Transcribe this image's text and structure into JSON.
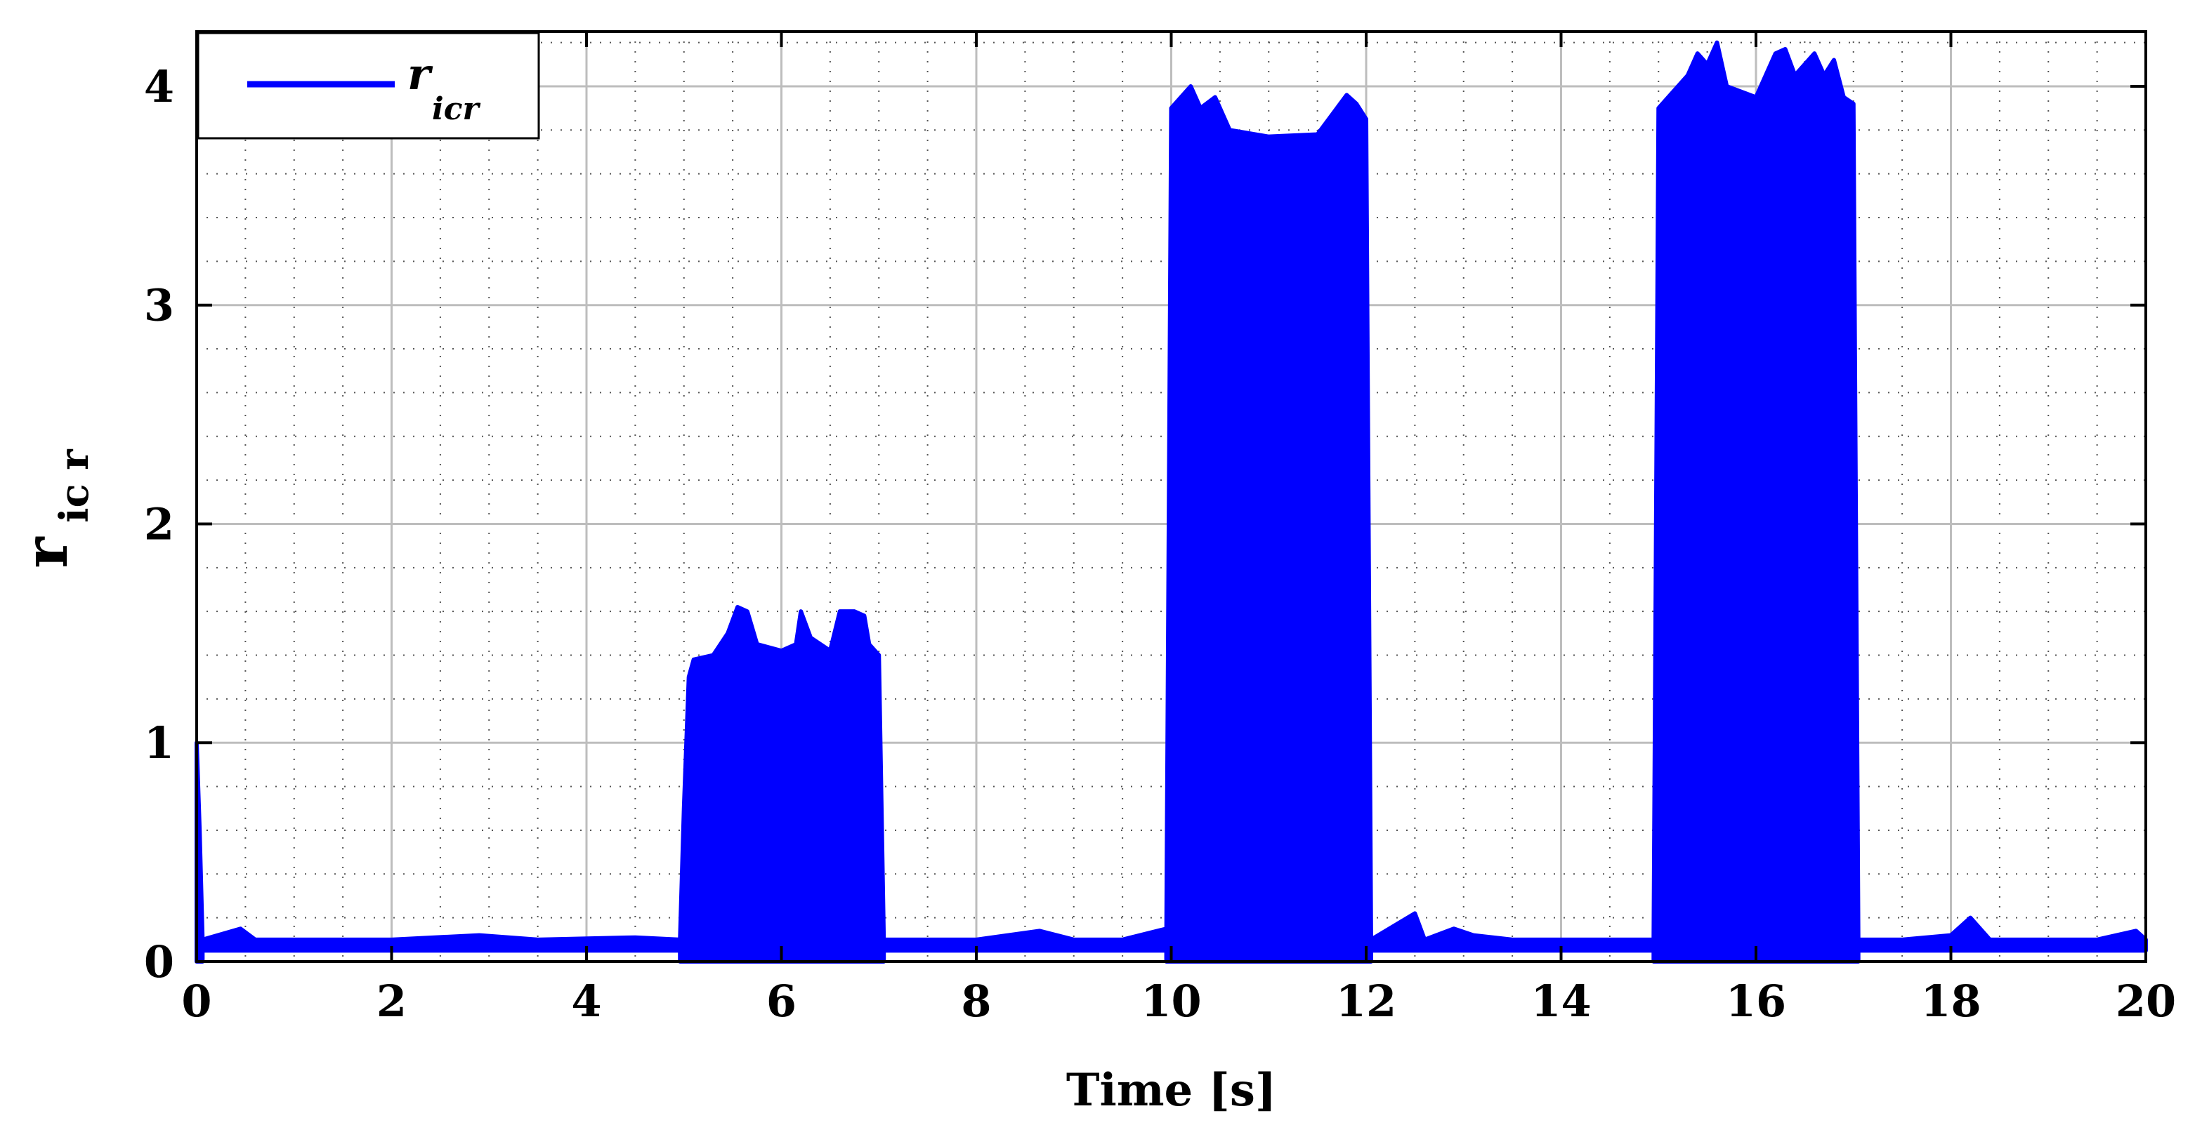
{
  "chart_data": {
    "type": "line",
    "xlabel": "Time [s]",
    "ylabel": {
      "main": "r",
      "sub": "ic r"
    },
    "xlim": [
      0,
      20
    ],
    "ylim": [
      0,
      4.25
    ],
    "xticks": [
      "0",
      "2",
      "4",
      "6",
      "8",
      "10",
      "12",
      "14",
      "16",
      "18",
      "20"
    ],
    "yticks": [
      "0",
      "1",
      "2",
      "3",
      "4"
    ],
    "grid": true,
    "minor_grid": true,
    "legend_position": "top-left",
    "series": [
      {
        "name": "r_icr",
        "name_main": "r",
        "name_sub": "icr",
        "color": "#0000ff",
        "segments": [
          {
            "x": [
              0.0,
              0.05
            ],
            "low": 0.0,
            "high": 1.0,
            "top_profile": [
              [
                0.0,
                1.0
              ],
              [
                0.03,
                0.6
              ],
              [
                0.06,
                0.1
              ]
            ]
          },
          {
            "x": [
              0.06,
              4.96
            ],
            "low": 0.05,
            "high": 0.1,
            "top_profile": [
              [
                0.06,
                0.1
              ],
              [
                0.45,
                0.15
              ],
              [
                0.6,
                0.1
              ],
              [
                1.0,
                0.1
              ],
              [
                2.0,
                0.1
              ],
              [
                2.9,
                0.12
              ],
              [
                3.5,
                0.1
              ],
              [
                4.5,
                0.11
              ],
              [
                4.96,
                0.1
              ]
            ]
          },
          {
            "x": [
              4.96,
              7.05
            ],
            "low": 0.0,
            "high": 1.45,
            "top_profile": [
              [
                4.96,
                0.1
              ],
              [
                5.0,
                0.7
              ],
              [
                5.05,
                1.3
              ],
              [
                5.1,
                1.38
              ],
              [
                5.3,
                1.4
              ],
              [
                5.45,
                1.5
              ],
              [
                5.55,
                1.62
              ],
              [
                5.65,
                1.6
              ],
              [
                5.75,
                1.45
              ],
              [
                6.0,
                1.42
              ],
              [
                6.15,
                1.45
              ],
              [
                6.2,
                1.6
              ],
              [
                6.3,
                1.48
              ],
              [
                6.5,
                1.42
              ],
              [
                6.6,
                1.6
              ],
              [
                6.75,
                1.6
              ],
              [
                6.85,
                1.58
              ],
              [
                6.9,
                1.45
              ],
              [
                7.0,
                1.4
              ],
              [
                7.05,
                0.1
              ]
            ]
          },
          {
            "x": [
              7.05,
              9.95
            ],
            "low": 0.05,
            "high": 0.1,
            "top_profile": [
              [
                7.05,
                0.1
              ],
              [
                7.3,
                0.1
              ],
              [
                8.0,
                0.1
              ],
              [
                8.65,
                0.14
              ],
              [
                9.0,
                0.1
              ],
              [
                9.5,
                0.1
              ],
              [
                9.95,
                0.15
              ]
            ]
          },
          {
            "x": [
              9.95,
              12.05
            ],
            "low": 0.0,
            "high": 3.8,
            "top_profile": [
              [
                9.95,
                0.1
              ],
              [
                10.0,
                3.9
              ],
              [
                10.1,
                3.95
              ],
              [
                10.2,
                4.0
              ],
              [
                10.3,
                3.9
              ],
              [
                10.45,
                3.95
              ],
              [
                10.6,
                3.8
              ],
              [
                11.0,
                3.77
              ],
              [
                11.5,
                3.78
              ],
              [
                11.7,
                3.9
              ],
              [
                11.8,
                3.96
              ],
              [
                11.9,
                3.92
              ],
              [
                12.0,
                3.85
              ],
              [
                12.05,
                0.1
              ]
            ]
          },
          {
            "x": [
              12.05,
              14.95
            ],
            "low": 0.05,
            "high": 0.1,
            "top_profile": [
              [
                12.05,
                0.1
              ],
              [
                12.5,
                0.22
              ],
              [
                12.6,
                0.1
              ],
              [
                12.9,
                0.15
              ],
              [
                13.1,
                0.12
              ],
              [
                13.5,
                0.1
              ],
              [
                14.0,
                0.1
              ],
              [
                14.5,
                0.1
              ],
              [
                14.95,
                0.1
              ]
            ]
          },
          {
            "x": [
              14.95,
              17.05
            ],
            "low": 0.0,
            "high": 3.95,
            "top_profile": [
              [
                14.95,
                0.1
              ],
              [
                15.0,
                3.9
              ],
              [
                15.1,
                3.95
              ],
              [
                15.3,
                4.05
              ],
              [
                15.4,
                4.15
              ],
              [
                15.5,
                4.1
              ],
              [
                15.6,
                4.2
              ],
              [
                15.7,
                4.0
              ],
              [
                16.0,
                3.95
              ],
              [
                16.2,
                4.15
              ],
              [
                16.3,
                4.17
              ],
              [
                16.4,
                4.05
              ],
              [
                16.6,
                4.15
              ],
              [
                16.7,
                4.05
              ],
              [
                16.8,
                4.12
              ],
              [
                16.9,
                3.95
              ],
              [
                17.0,
                3.92
              ],
              [
                17.05,
                0.1
              ]
            ]
          },
          {
            "x": [
              17.05,
              20.0
            ],
            "low": 0.05,
            "high": 0.1,
            "top_profile": [
              [
                17.05,
                0.1
              ],
              [
                17.5,
                0.1
              ],
              [
                18.0,
                0.12
              ],
              [
                18.2,
                0.2
              ],
              [
                18.4,
                0.1
              ],
              [
                19.0,
                0.1
              ],
              [
                19.5,
                0.1
              ],
              [
                19.9,
                0.14
              ],
              [
                20.0,
                0.1
              ]
            ]
          }
        ]
      }
    ]
  }
}
